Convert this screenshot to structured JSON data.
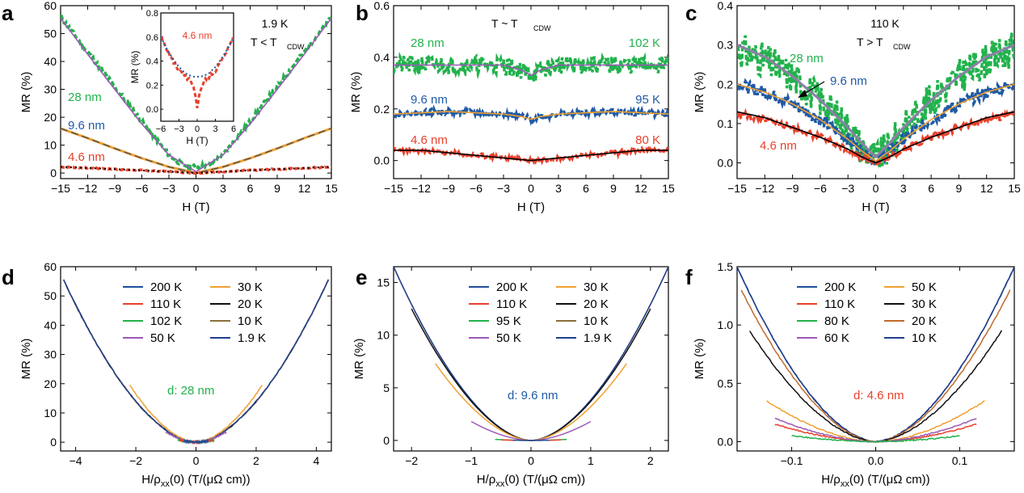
{
  "chart_data": [
    {
      "panel_label": "a",
      "type": "line",
      "xlabel": "H (T)",
      "ylabel": "MR (%)",
      "xlim": [
        -15,
        15
      ],
      "ylim": [
        -2,
        60
      ],
      "xticks": [
        -15,
        -12,
        -9,
        -6,
        -3,
        0,
        3,
        6,
        9,
        12,
        15
      ],
      "yticks": [
        0,
        10,
        20,
        30,
        40,
        50,
        60
      ],
      "annotations": [
        "1.9 K",
        "T < T",
        "CDW"
      ],
      "series": [
        {
          "name": "28 nm",
          "color": "#22b24c",
          "x": [
            -15,
            -12,
            -9,
            -6,
            -3,
            -1.5,
            0,
            1.5,
            3,
            6,
            9,
            12,
            15
          ],
          "y": [
            56,
            43.5,
            31,
            18.5,
            6.5,
            3,
            2,
            3,
            6.5,
            18.5,
            31,
            43.5,
            56
          ]
        },
        {
          "name": "9.6 nm",
          "color": "#1f5aa6",
          "x": [
            -15,
            -12,
            -9,
            -6,
            -3,
            0,
            3,
            6,
            9,
            12,
            15
          ],
          "y": [
            16,
            12.5,
            8.8,
            5.3,
            2.2,
            0,
            2.2,
            5.3,
            8.8,
            12.5,
            16
          ]
        },
        {
          "name": "4.6 nm",
          "color": "#e8412c",
          "x": [
            -15,
            -9,
            -3,
            0,
            3,
            9,
            15
          ],
          "y": [
            2.2,
            1.4,
            0.5,
            0,
            0.5,
            1.4,
            2.2
          ]
        }
      ],
      "fits": [
        {
          "color": "#9b59b6",
          "x": [
            -15,
            -12,
            -9,
            -6,
            -3,
            0,
            3,
            6,
            9,
            12,
            15
          ],
          "y": [
            55.5,
            42.6,
            30,
            17.6,
            6.5,
            0.5,
            6.5,
            17.6,
            30,
            42.6,
            55.5
          ]
        },
        {
          "color": "#f0a030",
          "x": [
            -15,
            -12,
            -9,
            -6,
            -3,
            0,
            3,
            6,
            9,
            12,
            15
          ],
          "y": [
            16,
            12.5,
            8.8,
            5.3,
            2.2,
            0,
            2.2,
            5.3,
            8.8,
            12.5,
            16
          ]
        }
      ],
      "inset": {
        "label": "4.6 nm",
        "xlabel": "H (T)",
        "ylabel": "MR (%)",
        "xlim": [
          -6,
          6
        ],
        "ylim": [
          -0.1,
          0.8
        ],
        "xticks": [
          -6,
          -3,
          0,
          3,
          6
        ],
        "yticks": [
          0.0,
          0.2,
          0.4,
          0.6,
          0.8
        ],
        "x": [
          -6,
          -5,
          -4,
          -3,
          -2,
          -1.2,
          -0.6,
          -0.2,
          0,
          0.2,
          0.6,
          1.2,
          2,
          3,
          4,
          5,
          6
        ],
        "y": [
          0.6,
          0.5,
          0.4,
          0.32,
          0.27,
          0.24,
          0.17,
          0.08,
          0.02,
          0.08,
          0.17,
          0.24,
          0.27,
          0.32,
          0.4,
          0.5,
          0.6
        ],
        "fit_y": [
          0.6,
          0.5,
          0.42,
          0.35,
          0.3,
          0.28,
          0.27,
          0.27,
          0.27,
          0.27,
          0.27,
          0.28,
          0.3,
          0.35,
          0.42,
          0.5,
          0.6
        ]
      }
    },
    {
      "panel_label": "b",
      "type": "line",
      "xlabel": "H (T)",
      "ylabel": "MR (%)",
      "xlim": [
        -15,
        15
      ],
      "ylim": [
        -0.07,
        0.6
      ],
      "xticks": [
        -15,
        -12,
        -9,
        -6,
        -3,
        0,
        3,
        6,
        9,
        12,
        15
      ],
      "yticks": [
        0.0,
        0.2,
        0.4,
        0.6
      ],
      "annotations": [
        "T ~ T",
        "CDW"
      ],
      "series": [
        {
          "name": "28 nm",
          "temp": "102 K",
          "color": "#22b24c",
          "x": [
            -15,
            -9,
            -3,
            -1,
            0,
            1,
            3,
            9,
            15
          ],
          "y": [
            0.37,
            0.37,
            0.37,
            0.35,
            0.33,
            0.35,
            0.37,
            0.37,
            0.37
          ]
        },
        {
          "name": "9.6 nm",
          "temp": "95 K",
          "color": "#1f5aa6",
          "x": [
            -15,
            -9,
            -3,
            -1,
            0,
            1,
            3,
            9,
            15
          ],
          "y": [
            0.18,
            0.19,
            0.18,
            0.17,
            0.16,
            0.17,
            0.18,
            0.19,
            0.18
          ]
        },
        {
          "name": "4.6 nm",
          "temp": "80 K",
          "color": "#e8412c",
          "x": [
            -15,
            -12,
            -9,
            -6,
            -3,
            0,
            3,
            6,
            9,
            12,
            15
          ],
          "y": [
            0.04,
            0.04,
            0.03,
            0.02,
            0.01,
            0,
            0.01,
            0.02,
            0.03,
            0.04,
            0.04
          ]
        }
      ]
    },
    {
      "panel_label": "c",
      "type": "line",
      "xlabel": "H (T)",
      "ylabel": "MR (%)",
      "xlim": [
        -15,
        15
      ],
      "ylim": [
        -0.04,
        0.4
      ],
      "xticks": [
        -15,
        -12,
        -9,
        -6,
        -3,
        0,
        3,
        6,
        9,
        12,
        15
      ],
      "yticks": [
        0.0,
        0.1,
        0.2,
        0.3,
        0.4
      ],
      "annotations": [
        "110 K",
        "T > T",
        "CDW"
      ],
      "series": [
        {
          "name": "28 nm",
          "color": "#22b24c",
          "x": [
            -15,
            -12,
            -9,
            -6,
            -3,
            -1.5,
            0,
            1.5,
            3,
            6,
            9,
            12,
            15
          ],
          "y": [
            0.29,
            0.26,
            0.22,
            0.16,
            0.09,
            0.04,
            0.01,
            0.04,
            0.09,
            0.16,
            0.22,
            0.26,
            0.29
          ]
        },
        {
          "name": "9.6 nm",
          "color": "#1f5aa6",
          "x": [
            -15,
            -12,
            -9,
            -6,
            -3,
            -1.5,
            0,
            1.5,
            3,
            6,
            9,
            12,
            15
          ],
          "y": [
            0.2,
            0.18,
            0.15,
            0.11,
            0.06,
            0.03,
            0.005,
            0.03,
            0.06,
            0.11,
            0.15,
            0.18,
            0.2
          ]
        },
        {
          "name": "4.6 nm",
          "color": "#e8412c",
          "x": [
            -15,
            -12,
            -9,
            -6,
            -3,
            -1.5,
            0,
            1.5,
            3,
            6,
            9,
            12,
            15
          ],
          "y": [
            0.125,
            0.11,
            0.09,
            0.065,
            0.035,
            0.015,
            0.002,
            0.015,
            0.035,
            0.065,
            0.09,
            0.11,
            0.125
          ]
        }
      ]
    },
    {
      "panel_label": "d",
      "type": "line",
      "xlabel": "H/ρ",
      "xlabel_sub": "xx",
      "xlabel_tail": "(0) (T/(μΩ cm))",
      "ylabel": "MR (%)",
      "xlim": [
        -4.5,
        4.5
      ],
      "ylim": [
        -3,
        60
      ],
      "xticks": [
        -4,
        -2,
        0,
        2,
        4
      ],
      "yticks": [
        0,
        10,
        20,
        30,
        40,
        50,
        60
      ],
      "annotation": "d: 28 nm",
      "series": [
        {
          "name": "200 K",
          "color": "#1f4e9c",
          "xmax": 0.4,
          "ymax": 0.4
        },
        {
          "name": "110 K",
          "color": "#e8412c",
          "xmax": 0.55,
          "ymax": 0.7
        },
        {
          "name": "102 K",
          "color": "#22b24c",
          "xmax": 0.6,
          "ymax": 0.8
        },
        {
          "name": "50 K",
          "color": "#9b59b6",
          "xmax": 1.0,
          "ymax": 3.5
        },
        {
          "name": "30 K",
          "color": "#f0a030",
          "xmax": 2.2,
          "ymax": 19.5
        },
        {
          "name": "20 K",
          "color": "#111111",
          "xmax": 4.4,
          "ymax": 55.5
        },
        {
          "name": "10 K",
          "color": "#8b6f3a",
          "xmax": 4.4,
          "ymax": 55.5
        },
        {
          "name": "1.9 K",
          "color": "#1f3f8c",
          "xmax": 4.4,
          "ymax": 55.5
        }
      ]
    },
    {
      "panel_label": "e",
      "type": "line",
      "xlabel": "H/ρ",
      "xlabel_sub": "xx",
      "xlabel_tail": "(0) (T/(μΩ cm))",
      "ylabel": "MR (%)",
      "xlim": [
        -2.3,
        2.3
      ],
      "ylim": [
        -1,
        16.5
      ],
      "xticks": [
        -2,
        -1,
        0,
        1,
        2
      ],
      "yticks": [
        0,
        5,
        10,
        15
      ],
      "annotation": "d: 9.6 nm",
      "series": [
        {
          "name": "200 K",
          "color": "#1f4e9c",
          "xmax": 0.3,
          "ymax": 0.02
        },
        {
          "name": "110 K",
          "color": "#e8412c",
          "xmax": 0.5,
          "ymax": 0.05
        },
        {
          "name": "95 K",
          "color": "#22b24c",
          "xmax": 0.6,
          "ymax": 0.1
        },
        {
          "name": "50 K",
          "color": "#9b59b6",
          "xmax": 1.0,
          "ymax": 1.8
        },
        {
          "name": "30 K",
          "color": "#f0a030",
          "xmax": 1.6,
          "ymax": 7.3
        },
        {
          "name": "20 K",
          "color": "#111111",
          "xmax": 2.0,
          "ymax": 12.5
        },
        {
          "name": "10 K",
          "color": "#8b6f3a",
          "xmax": 2.3,
          "ymax": 16.5
        },
        {
          "name": "1.9 K",
          "color": "#1f3f8c",
          "xmax": 2.3,
          "ymax": 16.5
        }
      ]
    },
    {
      "panel_label": "f",
      "type": "line",
      "xlabel": "H/ρ",
      "xlabel_sub": "xx",
      "xlabel_tail": "(0) (T/(μΩ cm))",
      "ylabel": "MR (%)",
      "xlim": [
        -0.165,
        0.165
      ],
      "ylim": [
        -0.08,
        1.5
      ],
      "xticks": [
        -0.1,
        0.0,
        0.1
      ],
      "xticklabels": [
        "-0.1",
        "0.0",
        "0.1"
      ],
      "yticks": [
        0.0,
        0.5,
        1.0,
        1.5
      ],
      "annotation": "d: 4.6 nm",
      "series": [
        {
          "name": "200 K",
          "color": "#1f4e9c",
          "xmax": 0.165,
          "ymax": 1.5
        },
        {
          "name": "110 K",
          "color": "#e8412c",
          "xmax": 0.12,
          "ymax": 0.15
        },
        {
          "name": "80 K",
          "color": "#22b24c",
          "xmax": 0.1,
          "ymax": 0.05
        },
        {
          "name": "60 K",
          "color": "#9b59b6",
          "xmax": 0.12,
          "ymax": 0.2
        },
        {
          "name": "50 K",
          "color": "#f0a030",
          "xmax": 0.13,
          "ymax": 0.35
        },
        {
          "name": "30 K",
          "color": "#111111",
          "xmax": 0.15,
          "ymax": 0.95
        },
        {
          "name": "20 K",
          "color": "#c06a2a",
          "xmax": 0.16,
          "ymax": 1.3
        },
        {
          "name": "10 K",
          "color": "#1f3f8c",
          "xmax": 0.165,
          "ymax": 1.5
        }
      ]
    }
  ]
}
